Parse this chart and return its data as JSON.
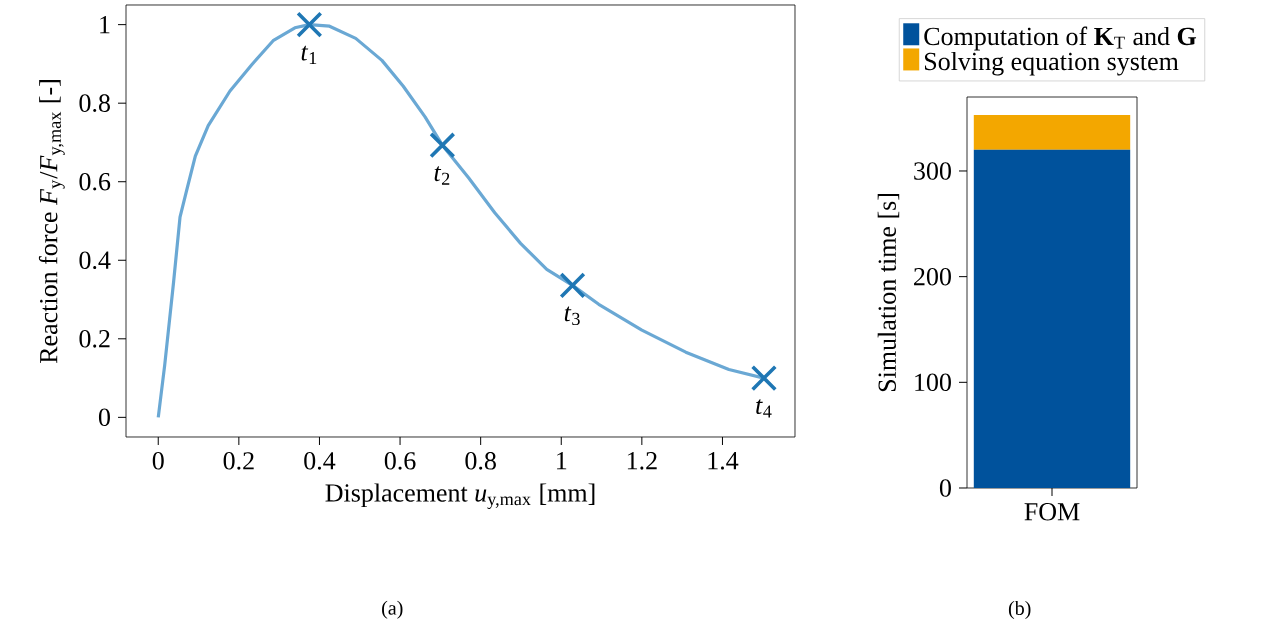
{
  "chart_data": [
    {
      "type": "line",
      "xlabel": "Displacement *u*$_{y,max}$ [mm]",
      "ylabel": "Reaction force *F*$_{y}$/*F*$_{y,max}$ [-]",
      "xlim": [
        -0.08,
        1.58
      ],
      "ylim": [
        -0.05,
        1.05
      ],
      "xticks": [
        0,
        0.2,
        0.4,
        0.6,
        0.8,
        1,
        1.2,
        1.4
      ],
      "yticks": [
        0,
        0.2,
        0.4,
        0.6,
        0.8,
        1
      ],
      "series": [
        {
          "type": "line",
          "color": "#6aa8d4",
          "marker": "none",
          "x": [
            0,
            0.016,
            0.038,
            0.054,
            0.07,
            0.092,
            0.124,
            0.178,
            0.232,
            0.285,
            0.339,
            0.375,
            0.425,
            0.49,
            0.555,
            0.608,
            0.662,
            0.705,
            0.77,
            0.835,
            0.899,
            0.964,
            1.028,
            1.093,
            1.2,
            1.309,
            1.416,
            1.503
          ],
          "values": [
            0,
            0.133,
            0.344,
            0.51,
            0.576,
            0.665,
            0.743,
            0.831,
            0.898,
            0.959,
            0.992,
            1.0,
            0.996,
            0.965,
            0.909,
            0.843,
            0.765,
            0.693,
            0.61,
            0.521,
            0.443,
            0.377,
            0.336,
            0.288,
            0.222,
            0.166,
            0.122,
            0.1
          ]
        },
        {
          "type": "scatter",
          "color": "#1f77b4",
          "marker": "cross",
          "x": [
            0.375,
            0.705,
            1.028,
            1.503
          ],
          "values": [
            1.0,
            0.693,
            0.336,
            0.1
          ]
        }
      ],
      "annotations": [
        {
          "text": "*t*$_{1}$",
          "x": 0.375,
          "y": 1.0
        },
        {
          "text": "*t*$_{2}$",
          "x": 0.705,
          "y": 0.693
        },
        {
          "text": "*t*$_{3}$",
          "x": 1.028,
          "y": 0.336
        },
        {
          "text": "*t*$_{4}$",
          "x": 1.503,
          "y": 0.1
        },
        "(a)"
      ]
    },
    {
      "type": "bar",
      "stacked": true,
      "ylabel": "Simulation time [s]",
      "categories": [
        "FOM"
      ],
      "ylim": [
        0,
        370
      ],
      "yticks": [
        0,
        100,
        200,
        300
      ],
      "legend": "top",
      "series": [
        {
          "name": "Computation of **K**$_{T}$ and **G**",
          "color": "#00529c",
          "values": [
            320
          ]
        },
        {
          "name": "Solving equation system",
          "color": "#f3a700",
          "values": [
            33
          ]
        }
      ],
      "annotations": [
        "(b)"
      ]
    }
  ]
}
